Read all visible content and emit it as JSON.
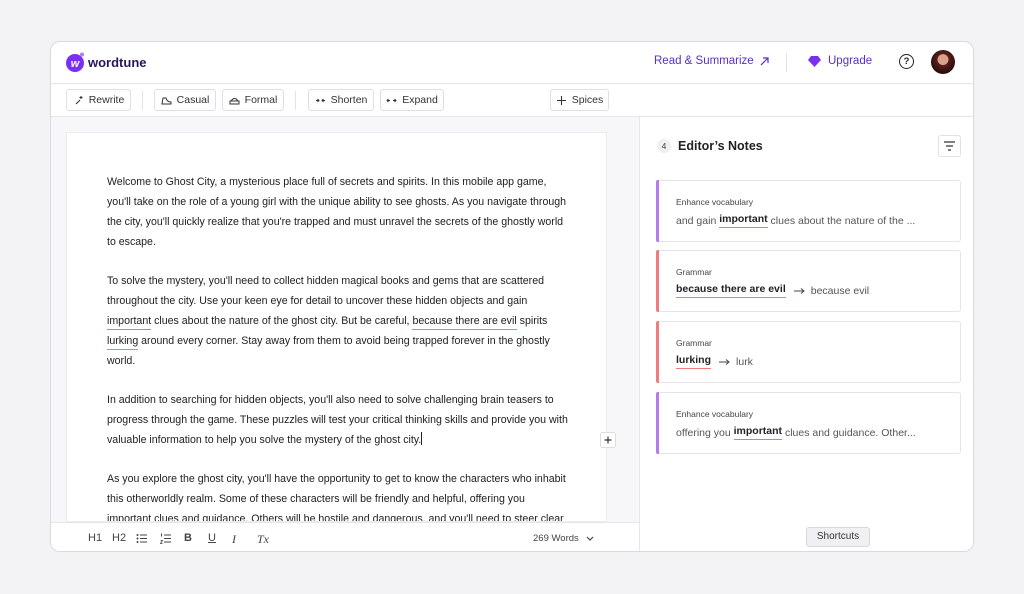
{
  "header": {
    "brand": "wordtune",
    "read_summarize": "Read & Summarize",
    "upgrade": "Upgrade",
    "help": "?"
  },
  "toolbar": {
    "buttons": [
      "Rewrite",
      "Casual",
      "Formal",
      "Shorten",
      "Expand",
      "Spices"
    ]
  },
  "editor": {
    "paragraphs": [
      [
        "Welcome to Ghost City, a mysterious place full of secrets and spirits. In this mobile app game, you'll take on the role of a young girl with the unique ability to see ghosts. As you navigate through the city, you'll quickly realize that you're trapped and must unravel the secrets of the ghostly world to escape."
      ],
      [
        "To solve the mystery, you'll need to collect hidden magical books and gems that are scattered throughout the city. Use your keen eye for detail to uncover these hidden objects and gain ",
        {
          "text": "important",
          "underline": "#b57bee"
        },
        " clues about the nature of the ghost city. But be careful, ",
        {
          "text": "because there are evil",
          "underline": "#ef7d7d"
        },
        " spirits ",
        {
          "text": "lurking",
          "underline": "#ef7d7d"
        },
        " around every corner. Stay away from them to avoid being trapped forever in the ghostly world."
      ],
      [
        "In addition to searching for hidden objects, you'll also need to solve challenging brain teasers to progress through the game. These puzzles will test your critical thinking skills and provide you with valuable information to help you solve the mystery of the ghost city."
      ],
      [
        "As you explore the ghost city, you'll have the opportunity to get to know the characters who inhabit this otherworldly realm. Some of these characters will be friendly and helpful, offering you important clues and guidance. Others will be hostile and dangerous, and you'll need to steer clear"
      ]
    ],
    "format_tools": [
      "H1",
      "H2",
      "B",
      "U",
      "I",
      "Tx"
    ],
    "word_count": "269 Words"
  },
  "notes": {
    "count": 4,
    "title": "Editor’s Notes",
    "cards": [
      {
        "type": "Enhance vocabulary",
        "accent": "#b57bee",
        "before": "and gain ",
        "highlight": "important",
        "after": " clues about the nature of the ..."
      },
      {
        "type": "Grammar",
        "accent": "#ef7d7d",
        "highlight": "because there are evil",
        "suggestion": "because evil"
      },
      {
        "type": "Grammar",
        "accent": "#ef7d7d",
        "highlight": "lurking",
        "suggestion": "lurk"
      },
      {
        "type": "Enhance vocabulary",
        "accent": "#b57bee",
        "before": "offering you ",
        "highlight": "important",
        "after": " clues and guidance. Other..."
      }
    ]
  },
  "shortcuts": "Shortcuts"
}
